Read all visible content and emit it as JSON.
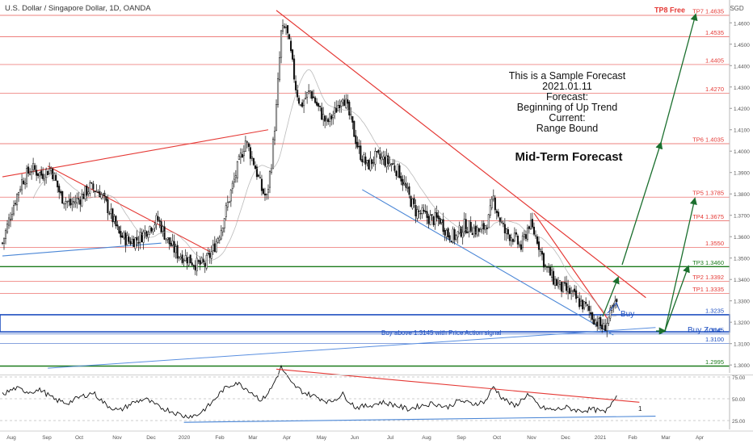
{
  "header": {
    "title": "U.S. Dollar / Singapore Dollar, 1D, OANDA",
    "currency": "SGD"
  },
  "forecast": {
    "lines": [
      "This is a Sample Forecast",
      "2021.01.11",
      "Forecast:",
      "Beginning of Up Trend",
      "Current:",
      "Range Bound"
    ],
    "midterm": "Mid-Term Forecast"
  },
  "annotations": {
    "buy": "Buy",
    "buy_zone": "Buy Zone",
    "buy_note": "Buy above 1.3145 with Price Action signal",
    "rsi_marker": "1"
  },
  "levels": [
    {
      "label": "TP8 Free",
      "value": 1.4659,
      "text": "",
      "color": "#e53935",
      "bold": true
    },
    {
      "label": "TP7",
      "value": 1.4635,
      "text": "1.4635",
      "color": "#e53935"
    },
    {
      "label": "",
      "value": 1.4535,
      "text": "1.4535",
      "color": "#e53935"
    },
    {
      "label": "",
      "value": 1.4405,
      "text": "1.4405",
      "color": "#e53935"
    },
    {
      "label": "",
      "value": 1.427,
      "text": "1.4270",
      "color": "#e53935"
    },
    {
      "label": "TP6",
      "value": 1.4035,
      "text": "1.4035",
      "color": "#e53935"
    },
    {
      "label": "TP5",
      "value": 1.3785,
      "text": "1.3785",
      "color": "#e53935"
    },
    {
      "label": "TP4",
      "value": 1.3675,
      "text": "1.3675",
      "color": "#e53935"
    },
    {
      "label": "",
      "value": 1.355,
      "text": "1.3550",
      "color": "#e53935"
    },
    {
      "label": "TP3",
      "value": 1.346,
      "text": "1.3460",
      "color": "#1b7a1b"
    },
    {
      "label": "TP2",
      "value": 1.3392,
      "text": "1.3392",
      "color": "#e53935"
    },
    {
      "label": "TP1",
      "value": 1.3335,
      "text": "1.3335",
      "color": "#e53935"
    },
    {
      "label": "",
      "value": 1.3235,
      "text": "1.3235",
      "color": "#1e4fc0"
    },
    {
      "label": "",
      "value": 1.3145,
      "text": "1.3145",
      "color": "#1e4fc0"
    },
    {
      "label": "",
      "value": 1.31,
      "text": "1.3100",
      "color": "#1e4fc0"
    },
    {
      "label": "",
      "value": 1.2995,
      "text": "1.2995",
      "color": "#1b7a1b"
    }
  ],
  "chart_data": [
    {
      "type": "candlestick",
      "title": "U.S. Dollar / Singapore Dollar, 1D, OANDA",
      "ylim": [
        1.298,
        1.469
      ],
      "y_ticks": [
        1.3,
        1.31,
        1.32,
        1.33,
        1.34,
        1.35,
        1.36,
        1.37,
        1.38,
        1.39,
        1.4,
        1.41,
        1.42,
        1.43,
        1.44,
        1.45,
        1.46
      ],
      "x_ticks": [
        "Aug",
        "Sep",
        "Oct",
        "Nov",
        "Dec",
        "2020",
        "Feb",
        "Mar",
        "Apr",
        "May",
        "Jun",
        "Jul",
        "Aug",
        "Sep",
        "Oct",
        "Nov",
        "Dec",
        "2021",
        "Feb",
        "Mar",
        "Apr"
      ],
      "close_path": [
        [
          0,
          1.357
        ],
        [
          6,
          1.373
        ],
        [
          12,
          1.386
        ],
        [
          18,
          1.392
        ],
        [
          24,
          1.389
        ],
        [
          30,
          1.392
        ],
        [
          36,
          1.379
        ],
        [
          42,
          1.375
        ],
        [
          48,
          1.378
        ],
        [
          54,
          1.383
        ],
        [
          60,
          1.381
        ],
        [
          66,
          1.372
        ],
        [
          72,
          1.361
        ],
        [
          78,
          1.358
        ],
        [
          84,
          1.359
        ],
        [
          90,
          1.364
        ],
        [
          96,
          1.368
        ],
        [
          102,
          1.358
        ],
        [
          108,
          1.352
        ],
        [
          114,
          1.35
        ],
        [
          120,
          1.347
        ],
        [
          125,
          1.347
        ],
        [
          130,
          1.354
        ],
        [
          135,
          1.364
        ],
        [
          140,
          1.378
        ],
        [
          145,
          1.392
        ],
        [
          150,
          1.405
        ],
        [
          155,
          1.395
        ],
        [
          160,
          1.382
        ],
        [
          163,
          1.378
        ],
        [
          166,
          1.395
        ],
        [
          169,
          1.42
        ],
        [
          172,
          1.455
        ],
        [
          175,
          1.458
        ],
        [
          178,
          1.445
        ],
        [
          181,
          1.43
        ],
        [
          184,
          1.421
        ],
        [
          187,
          1.425
        ],
        [
          190,
          1.428
        ],
        [
          195,
          1.42
        ],
        [
          200,
          1.413
        ],
        [
          205,
          1.418
        ],
        [
          210,
          1.427
        ],
        [
          215,
          1.414
        ],
        [
          220,
          1.4
        ],
        [
          225,
          1.393
        ],
        [
          230,
          1.397
        ],
        [
          235,
          1.396
        ],
        [
          240,
          1.394
        ],
        [
          245,
          1.39
        ],
        [
          250,
          1.38
        ],
        [
          255,
          1.372
        ],
        [
          260,
          1.37
        ],
        [
          265,
          1.368
        ],
        [
          270,
          1.368
        ],
        [
          275,
          1.361
        ],
        [
          280,
          1.36
        ],
        [
          285,
          1.365
        ],
        [
          290,
          1.364
        ],
        [
          295,
          1.362
        ],
        [
          300,
          1.368
        ],
        [
          303,
          1.378
        ],
        [
          306,
          1.37
        ],
        [
          310,
          1.362
        ],
        [
          315,
          1.36
        ],
        [
          320,
          1.355
        ],
        [
          325,
          1.366
        ],
        [
          330,
          1.359
        ],
        [
          335,
          1.346
        ],
        [
          340,
          1.34
        ],
        [
          345,
          1.336
        ],
        [
          350,
          1.334
        ],
        [
          355,
          1.33
        ],
        [
          360,
          1.327
        ],
        [
          365,
          1.322
        ],
        [
          368,
          1.319
        ],
        [
          371,
          1.317
        ],
        [
          374,
          1.322
        ],
        [
          377,
          1.326
        ],
        [
          379,
          1.329
        ]
      ]
    },
    {
      "type": "line",
      "name": "RSI",
      "ylim": [
        15,
        90
      ],
      "y_ticks": [
        25,
        50,
        75
      ],
      "y_tick_labels": [
        "25.00",
        "50.00",
        "75.00"
      ],
      "points": [
        [
          0,
          55
        ],
        [
          8,
          62
        ],
        [
          16,
          58
        ],
        [
          24,
          60
        ],
        [
          32,
          49
        ],
        [
          40,
          45
        ],
        [
          48,
          52
        ],
        [
          56,
          57
        ],
        [
          64,
          43
        ],
        [
          72,
          36
        ],
        [
          80,
          45
        ],
        [
          88,
          50
        ],
        [
          96,
          41
        ],
        [
          104,
          36
        ],
        [
          112,
          30
        ],
        [
          120,
          31
        ],
        [
          128,
          43
        ],
        [
          136,
          60
        ],
        [
          144,
          69
        ],
        [
          152,
          60
        ],
        [
          160,
          48
        ],
        [
          166,
          62
        ],
        [
          172,
          86
        ],
        [
          178,
          68
        ],
        [
          186,
          57
        ],
        [
          194,
          52
        ],
        [
          202,
          46
        ],
        [
          210,
          55
        ],
        [
          218,
          40
        ],
        [
          226,
          42
        ],
        [
          234,
          46
        ],
        [
          242,
          43
        ],
        [
          250,
          38
        ],
        [
          258,
          42
        ],
        [
          266,
          45
        ],
        [
          274,
          40
        ],
        [
          282,
          48
        ],
        [
          290,
          44
        ],
        [
          298,
          47
        ],
        [
          303,
          64
        ],
        [
          308,
          52
        ],
        [
          316,
          41
        ],
        [
          324,
          55
        ],
        [
          332,
          40
        ],
        [
          340,
          37
        ],
        [
          348,
          40
        ],
        [
          356,
          36
        ],
        [
          364,
          38
        ],
        [
          372,
          34
        ],
        [
          376,
          46
        ],
        [
          379,
          56
        ]
      ]
    }
  ]
}
